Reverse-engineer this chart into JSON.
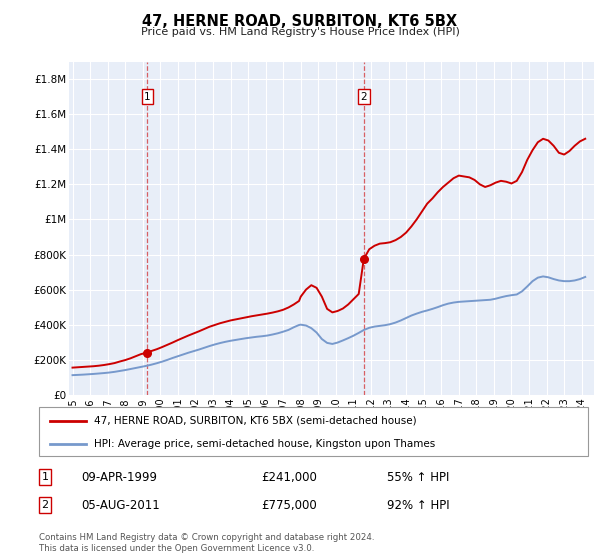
{
  "title": "47, HERNE ROAD, SURBITON, KT6 5BX",
  "subtitle": "Price paid vs. HM Land Registry's House Price Index (HPI)",
  "legend_line1": "47, HERNE ROAD, SURBITON, KT6 5BX (semi-detached house)",
  "legend_line2": "HPI: Average price, semi-detached house, Kingston upon Thames",
  "sale1_date": "09-APR-1999",
  "sale1_price": "£241,000",
  "sale1_hpi": "55% ↑ HPI",
  "sale1_year": 1999.27,
  "sale1_value": 241000,
  "sale2_date": "05-AUG-2011",
  "sale2_price": "£775,000",
  "sale2_hpi": "92% ↑ HPI",
  "sale2_year": 2011.59,
  "sale2_value": 775000,
  "price_color": "#cc0000",
  "hpi_color": "#7799cc",
  "chart_bg": "#e8eef8",
  "footer": "Contains HM Land Registry data © Crown copyright and database right 2024.\nThis data is licensed under the Open Government Licence v3.0.",
  "ylim": [
    0,
    1900000
  ],
  "yticks": [
    0,
    200000,
    400000,
    600000,
    800000,
    1000000,
    1200000,
    1400000,
    1600000,
    1800000
  ],
  "ytick_labels": [
    "£0",
    "£200K",
    "£400K",
    "£600K",
    "£800K",
    "£1M",
    "£1.2M",
    "£1.4M",
    "£1.6M",
    "£1.8M"
  ],
  "xmin": 1994.8,
  "xmax": 2024.7,
  "sale1_vline_x": 1999.27,
  "sale2_vline_x": 2011.59,
  "price_x": [
    1995.0,
    1995.3,
    1995.6,
    1995.9,
    1996.2,
    1996.5,
    1996.8,
    1997.1,
    1997.4,
    1997.7,
    1998.0,
    1998.3,
    1998.6,
    1998.9,
    1999.27,
    1999.5,
    1999.8,
    2000.1,
    2000.4,
    2000.7,
    2001.0,
    2001.3,
    2001.6,
    2001.9,
    2002.2,
    2002.5,
    2002.8,
    2003.1,
    2003.4,
    2003.7,
    2004.0,
    2004.3,
    2004.6,
    2004.9,
    2005.2,
    2005.5,
    2005.8,
    2006.1,
    2006.4,
    2006.7,
    2007.0,
    2007.3,
    2007.6,
    2007.9,
    2008.0,
    2008.3,
    2008.6,
    2008.9,
    2009.2,
    2009.5,
    2009.8,
    2010.1,
    2010.4,
    2010.7,
    2011.0,
    2011.3,
    2011.59,
    2011.9,
    2012.2,
    2012.5,
    2012.8,
    2013.1,
    2013.4,
    2013.7,
    2014.0,
    2014.3,
    2014.6,
    2014.9,
    2015.2,
    2015.5,
    2015.8,
    2016.1,
    2016.4,
    2016.7,
    2017.0,
    2017.3,
    2017.6,
    2017.9,
    2018.2,
    2018.5,
    2018.8,
    2019.1,
    2019.4,
    2019.7,
    2020.0,
    2020.3,
    2020.6,
    2020.9,
    2021.2,
    2021.5,
    2021.8,
    2022.1,
    2022.4,
    2022.7,
    2023.0,
    2023.3,
    2023.6,
    2023.9,
    2024.2
  ],
  "price_y": [
    155000,
    157000,
    159000,
    161000,
    163000,
    166000,
    170000,
    175000,
    181000,
    190000,
    198000,
    208000,
    220000,
    232000,
    241000,
    250000,
    260000,
    272000,
    285000,
    298000,
    312000,
    325000,
    338000,
    350000,
    362000,
    375000,
    388000,
    398000,
    408000,
    416000,
    424000,
    430000,
    436000,
    442000,
    448000,
    453000,
    458000,
    463000,
    469000,
    476000,
    485000,
    498000,
    515000,
    535000,
    560000,
    600000,
    625000,
    610000,
    560000,
    490000,
    470000,
    478000,
    492000,
    515000,
    545000,
    575000,
    775000,
    830000,
    850000,
    862000,
    865000,
    870000,
    882000,
    900000,
    925000,
    960000,
    1000000,
    1045000,
    1090000,
    1120000,
    1155000,
    1185000,
    1210000,
    1235000,
    1250000,
    1245000,
    1240000,
    1225000,
    1200000,
    1185000,
    1195000,
    1210000,
    1220000,
    1215000,
    1205000,
    1220000,
    1270000,
    1340000,
    1395000,
    1440000,
    1460000,
    1450000,
    1420000,
    1380000,
    1370000,
    1390000,
    1420000,
    1445000,
    1460000
  ],
  "hpi_x": [
    1995.0,
    1995.3,
    1995.6,
    1995.9,
    1996.2,
    1996.5,
    1996.8,
    1997.1,
    1997.4,
    1997.7,
    1998.0,
    1998.3,
    1998.6,
    1998.9,
    1999.2,
    1999.5,
    1999.8,
    2000.1,
    2000.4,
    2000.7,
    2001.0,
    2001.3,
    2001.6,
    2001.9,
    2002.2,
    2002.5,
    2002.8,
    2003.1,
    2003.4,
    2003.7,
    2004.0,
    2004.3,
    2004.6,
    2004.9,
    2005.2,
    2005.5,
    2005.8,
    2006.1,
    2006.4,
    2006.7,
    2007.0,
    2007.3,
    2007.6,
    2007.9,
    2008.0,
    2008.3,
    2008.6,
    2008.9,
    2009.2,
    2009.5,
    2009.8,
    2010.1,
    2010.4,
    2010.7,
    2011.0,
    2011.3,
    2011.6,
    2011.9,
    2012.2,
    2012.5,
    2012.8,
    2013.1,
    2013.4,
    2013.7,
    2014.0,
    2014.3,
    2014.6,
    2014.9,
    2015.2,
    2015.5,
    2015.8,
    2016.1,
    2016.4,
    2016.7,
    2017.0,
    2017.3,
    2017.6,
    2017.9,
    2018.2,
    2018.5,
    2018.8,
    2019.1,
    2019.4,
    2019.7,
    2020.0,
    2020.3,
    2020.6,
    2020.9,
    2021.2,
    2021.5,
    2021.8,
    2022.1,
    2022.4,
    2022.7,
    2023.0,
    2023.3,
    2023.6,
    2023.9,
    2024.2
  ],
  "hpi_y": [
    112000,
    113500,
    115000,
    117000,
    119000,
    121500,
    124000,
    127000,
    131000,
    136000,
    141000,
    147000,
    153000,
    159000,
    165000,
    172000,
    180000,
    189000,
    199000,
    210000,
    220000,
    230000,
    240000,
    249000,
    258000,
    268000,
    278000,
    287000,
    295000,
    302000,
    308000,
    313000,
    318000,
    323000,
    327000,
    331000,
    334000,
    338000,
    344000,
    351000,
    360000,
    370000,
    385000,
    398000,
    400000,
    395000,
    380000,
    355000,
    318000,
    296000,
    290000,
    298000,
    310000,
    323000,
    337000,
    353000,
    370000,
    382000,
    389000,
    393000,
    397000,
    403000,
    412000,
    424000,
    438000,
    452000,
    463000,
    473000,
    481000,
    490000,
    500000,
    511000,
    520000,
    526000,
    530000,
    532000,
    534000,
    536000,
    538000,
    540000,
    542000,
    548000,
    556000,
    563000,
    568000,
    572000,
    590000,
    618000,
    648000,
    668000,
    675000,
    670000,
    660000,
    652000,
    648000,
    648000,
    652000,
    660000,
    672000
  ]
}
